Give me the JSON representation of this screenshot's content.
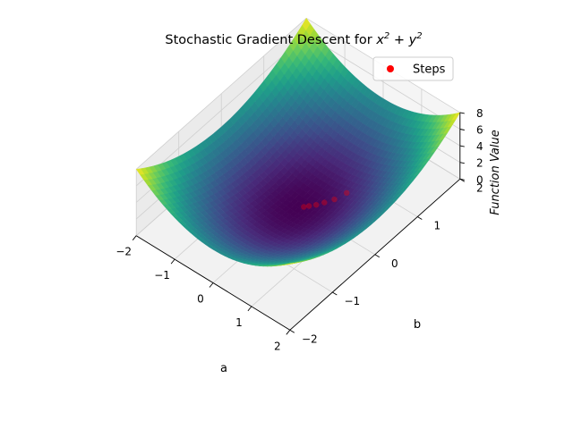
{
  "chart_data": {
    "type": "surface3d",
    "title_main": "Stochastic Gradient Descent for ",
    "title_math": "x^2 + y^2",
    "xlabel": "a",
    "ylabel": "b",
    "zlabel": "Function Value",
    "xlim": [
      -2,
      2
    ],
    "ylim": [
      -2,
      2
    ],
    "zlim": [
      0,
      8
    ],
    "x_ticks": [
      -2,
      -1,
      0,
      1,
      2
    ],
    "y_ticks": [
      -2,
      -1,
      0,
      1,
      2
    ],
    "z_ticks": [
      0,
      2,
      4,
      6,
      8
    ],
    "surface": {
      "function": "x^2 + y^2",
      "colormap": "viridis"
    },
    "legend": {
      "position": "top-right",
      "entries": [
        {
          "label": "Steps",
          "color": "#ff0000"
        }
      ]
    },
    "series": [
      {
        "name": "Steps",
        "color": "#ff0000",
        "points": [
          {
            "x": 0.6,
            "y": 0.6,
            "z": 0.72
          },
          {
            "x": 0.48,
            "y": 0.42,
            "z": 0.41
          },
          {
            "x": 0.35,
            "y": 0.3,
            "z": 0.21
          },
          {
            "x": 0.25,
            "y": 0.2,
            "z": 0.1
          },
          {
            "x": 0.15,
            "y": 0.12,
            "z": 0.04
          },
          {
            "x": 0.08,
            "y": 0.06,
            "z": 0.01
          }
        ]
      }
    ],
    "grid": true
  }
}
